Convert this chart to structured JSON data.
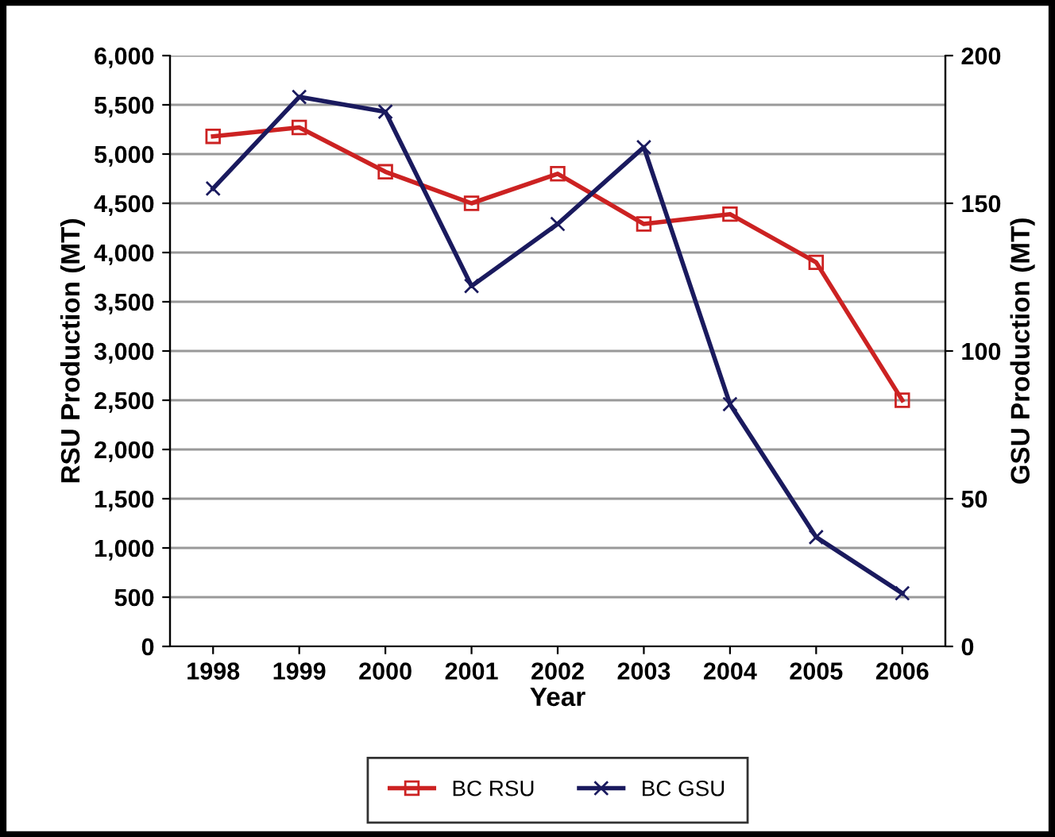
{
  "chart_data": {
    "type": "line",
    "xlabel": "Year",
    "ylabel": "RSU Production (MT)",
    "y2label": "GSU Production (MT)",
    "categories": [
      "1998",
      "1999",
      "2000",
      "2001",
      "2002",
      "2003",
      "2004",
      "2005",
      "2006"
    ],
    "series": [
      {
        "name": "BC RSU",
        "color": "#cc2222",
        "marker": "square",
        "values": [
          5180,
          5270,
          4820,
          4500,
          4800,
          4290,
          4390,
          3900,
          2500
        ]
      },
      {
        "name": "BC GSU",
        "color": "#1a1a5e",
        "marker": "cross",
        "axis": "y2",
        "values": [
          155,
          186,
          181,
          122,
          143,
          169,
          82,
          37,
          18
        ]
      }
    ],
    "ylim": [
      0,
      6000
    ],
    "yticks": [
      0,
      {
        "value": 500,
        "label": "500"
      },
      {
        "value": 1000,
        "label": "1,000"
      },
      {
        "value": 1500,
        "label": "1,500"
      },
      {
        "value": 2000,
        "label": "2,000"
      },
      {
        "value": 2500,
        "label": "2,500"
      },
      {
        "value": 3000,
        "label": "3,000"
      },
      {
        "value": 3500,
        "label": "3,500"
      },
      {
        "value": 4000,
        "label": "4,000"
      },
      {
        "value": 4500,
        "label": "4,500"
      },
      {
        "value": 5000,
        "label": "5,000"
      },
      {
        "value": 5500,
        "label": "5,500"
      },
      {
        "value": 6000,
        "label": "6,000"
      }
    ],
    "y2lim": [
      0,
      200
    ],
    "y2ticks": [
      0,
      50,
      100,
      150,
      200
    ],
    "grid": "y",
    "legend": "bottom",
    "line_style": "solid"
  }
}
